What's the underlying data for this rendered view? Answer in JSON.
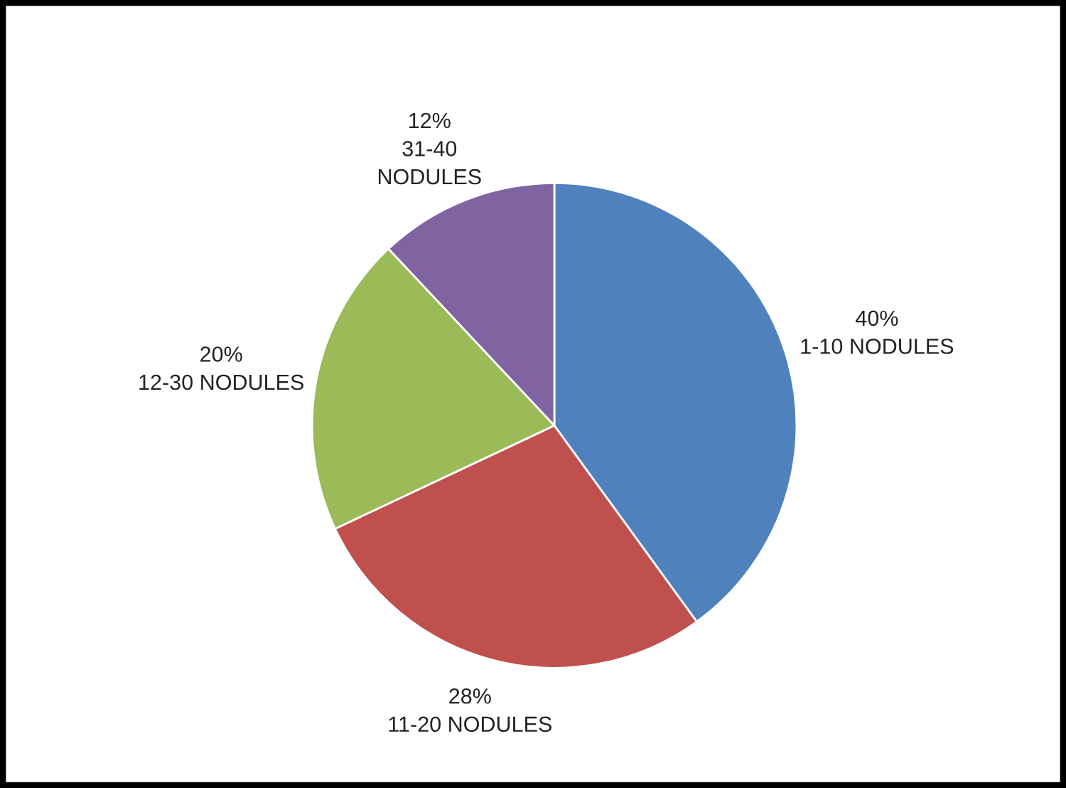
{
  "chart_data": {
    "type": "pie",
    "categories": [
      "1-10 NODULES",
      "11-20 NODULES",
      "12-30 NODULES",
      "31-40\nNODULES"
    ],
    "values": [
      40,
      28,
      20,
      12
    ],
    "value_labels": [
      "40%",
      "28%",
      "20%",
      "12%"
    ],
    "colors": [
      "#4f81bd",
      "#c0504d",
      "#9bbb59",
      "#8064a2"
    ]
  }
}
